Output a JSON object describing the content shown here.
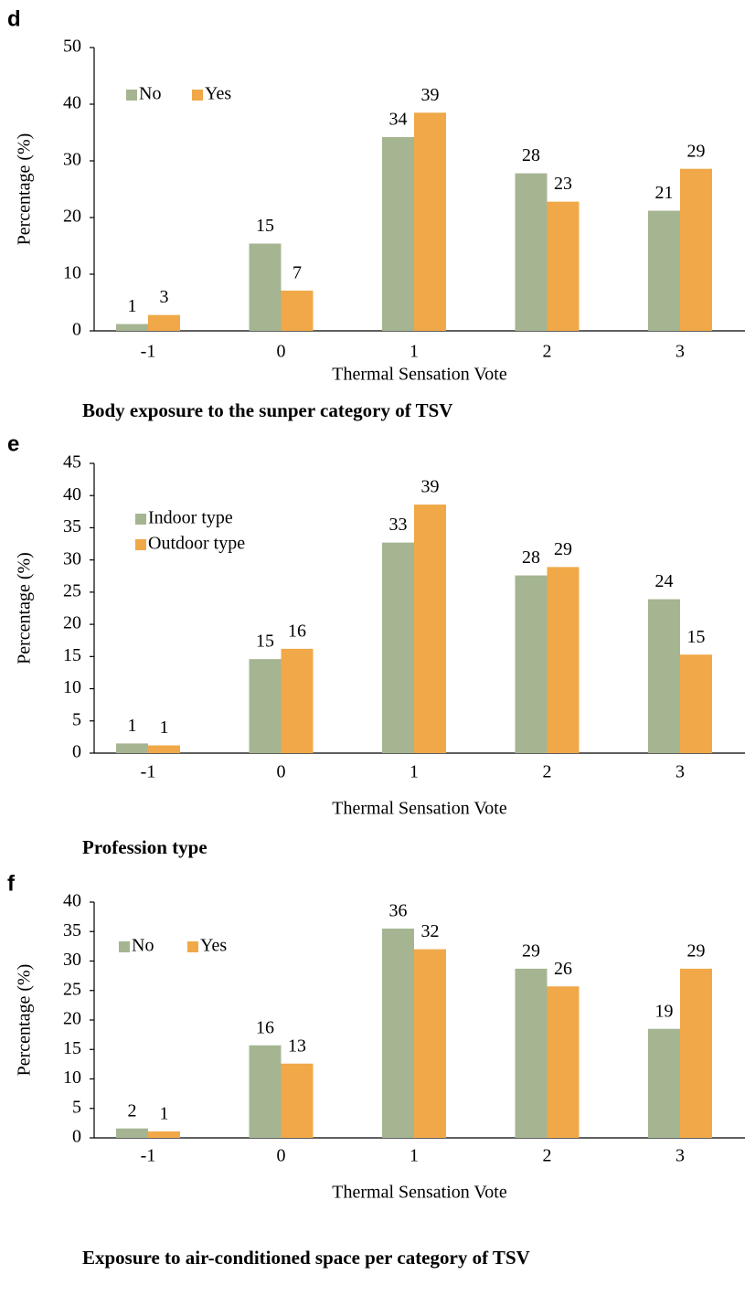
{
  "chart_data": [
    {
      "type": "bar",
      "panel_label": "d",
      "caption": "Body exposure to the sunper category of TSV",
      "x_label": "Thermal Sensation Vote",
      "y_label": "Percentage (%)",
      "categories": [
        "-1",
        "0",
        "1",
        "2",
        "3"
      ],
      "series": [
        {
          "name": "No",
          "color": "#a5b592",
          "values": [
            1.2,
            15.4,
            34.2,
            27.8,
            21.2
          ],
          "value_labels": [
            "1",
            "15",
            "34",
            "28",
            "21"
          ]
        },
        {
          "name": "Yes",
          "color": "#f0a848",
          "values": [
            2.8,
            7.1,
            38.5,
            22.8,
            28.6
          ],
          "value_labels": [
            "3",
            "7",
            "39",
            "23",
            "29"
          ]
        }
      ],
      "ylim": [
        0,
        50
      ],
      "yticks": [
        0,
        10,
        20,
        30,
        40,
        50
      ]
    },
    {
      "type": "bar",
      "panel_label": "e",
      "caption": "Profession type",
      "x_label": "Thermal Sensation Vote",
      "y_label": "Percentage (%)",
      "categories": [
        "-1",
        "0",
        "1",
        "2",
        "3"
      ],
      "series": [
        {
          "name": "Indoor type",
          "color": "#a5b592",
          "values": [
            1.5,
            14.6,
            32.7,
            27.6,
            23.9
          ],
          "value_labels": [
            "1",
            "15",
            "33",
            "28",
            "24"
          ]
        },
        {
          "name": "Outdoor type",
          "color": "#f0a848",
          "values": [
            1.2,
            16.2,
            38.6,
            28.9,
            15.3
          ],
          "value_labels": [
            "1",
            "16",
            "39",
            "29",
            "15"
          ]
        }
      ],
      "ylim": [
        0,
        45
      ],
      "yticks": [
        0,
        5,
        10,
        15,
        20,
        25,
        30,
        35,
        40,
        45
      ]
    },
    {
      "type": "bar",
      "panel_label": "f",
      "caption": "Exposure to air-conditioned space per category of TSV",
      "x_label": "Thermal Sensation Vote",
      "y_label": "Percentage (%)",
      "categories": [
        "-1",
        "0",
        "1",
        "2",
        "3"
      ],
      "series": [
        {
          "name": "No",
          "color": "#a5b592",
          "values": [
            1.6,
            15.7,
            35.5,
            28.7,
            18.5
          ],
          "value_labels": [
            "2",
            "16",
            "36",
            "29",
            "19"
          ]
        },
        {
          "name": "Yes",
          "color": "#f0a848",
          "values": [
            1.1,
            12.6,
            32.0,
            25.7,
            28.7
          ],
          "value_labels": [
            "1",
            "13",
            "32",
            "26",
            "29"
          ]
        }
      ],
      "ylim": [
        0,
        40
      ],
      "yticks": [
        0,
        5,
        10,
        15,
        20,
        25,
        30,
        35,
        40
      ]
    }
  ]
}
